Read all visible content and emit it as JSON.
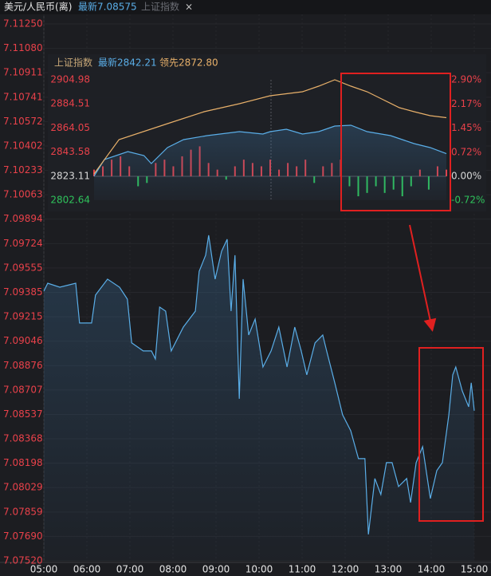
{
  "header": {
    "title": "美元/人民币(离)",
    "latest": "最新7.08575",
    "tab": "上证指数",
    "close": "×"
  },
  "chart_data": [
    {
      "type": "line",
      "color": "#5aaee8",
      "grid": true,
      "xlim": [
        5,
        15
      ],
      "xticks": [
        {
          "value": 5,
          "label": "05:00"
        },
        {
          "value": 6,
          "label": "06:00"
        },
        {
          "value": 7,
          "label": "07:00"
        },
        {
          "value": 8,
          "label": "08:00"
        },
        {
          "value": 9,
          "label": "09:00"
        },
        {
          "value": 10,
          "label": "10:00"
        },
        {
          "value": 11,
          "label": "11:00"
        },
        {
          "value": 12,
          "label": "12:00"
        },
        {
          "value": 13,
          "label": "13:00"
        },
        {
          "value": 14,
          "label": "14:00"
        },
        {
          "value": 15,
          "label": "15:00"
        }
      ],
      "ylim": [
        7.0752,
        7.1125
      ],
      "yticks": [
        {
          "value": 7.1125,
          "label": "7.11250"
        },
        {
          "value": 7.1108,
          "label": "7.11080"
        },
        7.10911,
        7.10741,
        7.10572,
        7.10402,
        7.10233,
        7.10063,
        7.09894,
        7.09724,
        7.09555,
        7.09385,
        7.09215,
        7.09046,
        7.08876,
        7.08707,
        7.08537,
        7.08368,
        7.08198,
        7.08029,
        7.07859,
        {
          "value": 7.0769,
          "label": "7.07690"
        },
        {
          "value": 7.0752,
          "label": "7.07520"
        }
      ],
      "x": [
        5.0,
        5.09,
        5.37,
        5.74,
        5.83,
        6.11,
        6.2,
        6.48,
        6.76,
        6.94,
        7.04,
        7.31,
        7.5,
        7.59,
        7.69,
        7.83,
        7.96,
        8.24,
        8.52,
        8.61,
        8.76,
        8.83,
        8.98,
        9.13,
        9.26,
        9.35,
        9.44,
        9.54,
        9.63,
        9.76,
        9.91,
        10.09,
        10.28,
        10.46,
        10.65,
        10.83,
        10.98,
        11.11,
        11.3,
        11.48,
        11.57,
        11.76,
        11.94,
        12.13,
        12.31,
        12.46,
        12.54,
        12.69,
        12.83,
        12.96,
        13.09,
        13.24,
        13.43,
        13.52,
        13.65,
        13.8,
        13.98,
        14.13,
        14.26,
        14.41,
        14.5,
        14.57,
        14.72,
        14.87,
        14.93,
        15.0
      ],
      "values": [
        7.09394,
        7.09449,
        7.09421,
        7.09449,
        7.09172,
        7.09172,
        7.09366,
        7.09477,
        7.09421,
        7.09338,
        7.09034,
        7.08978,
        7.08978,
        7.08923,
        7.09283,
        7.09255,
        7.08978,
        7.09144,
        7.09255,
        7.09532,
        7.09643,
        7.09782,
        7.09477,
        7.09671,
        7.09754,
        7.09255,
        7.09643,
        7.08646,
        7.09477,
        7.09089,
        7.092,
        7.08867,
        7.08978,
        7.09144,
        7.08867,
        7.09144,
        7.08978,
        7.08812,
        7.09034,
        7.09089,
        7.08978,
        7.08757,
        7.08535,
        7.08424,
        7.0823,
        7.0823,
        7.07704,
        7.08092,
        7.07981,
        7.08202,
        7.08202,
        7.08036,
        7.08092,
        7.07925,
        7.08202,
        7.08313,
        7.07953,
        7.08147,
        7.08202,
        7.08535,
        7.08812,
        7.08867,
        7.08701,
        7.0859,
        7.08757,
        7.08563
      ]
    },
    {
      "type": "line",
      "title": "上证指数",
      "xlim": [
        0,
        240
      ],
      "ylim": [
        2802.64,
        2904.98
      ],
      "yticks": [
        2904.98,
        2884.51,
        2864.05,
        2843.58,
        2823.11,
        2802.64
      ],
      "y2lim": [
        -0.72,
        2.9
      ],
      "y2ticks": [
        {
          "value": 2.9,
          "label": "2.90%"
        },
        {
          "value": 2.17,
          "label": "2.17%"
        },
        {
          "value": 1.45,
          "label": "1.45%"
        },
        {
          "value": 0.72,
          "label": "0.72%"
        },
        {
          "value": 0,
          "label": "0.00%"
        },
        {
          "value": -0.72,
          "label": "-0.72%"
        }
      ],
      "up_color": "#e8414a",
      "down_color": "#2fc25b",
      "flat_color": "#d8d8d8",
      "series": [
        {
          "name": "最新2842.21",
          "color": "#5aaee8",
          "x": [
            0,
            7,
            23,
            34,
            39,
            50,
            61,
            77,
            99,
            115,
            120,
            131,
            142,
            153,
            164,
            175,
            186,
            202,
            218,
            229,
            240
          ],
          "values": [
            2823.11,
            2837.2,
            2843.98,
            2840.6,
            2833.8,
            2847.37,
            2854.15,
            2857.54,
            2860.93,
            2858.9,
            2860.93,
            2862.96,
            2858.9,
            2860.93,
            2865.67,
            2866.35,
            2860.93,
            2857.54,
            2850.76,
            2847.37,
            2842.21
          ]
        },
        {
          "name": "领先2872.80",
          "color": "#e8b06a",
          "x": [
            0,
            17,
            50,
            75,
            99,
            120,
            142,
            153,
            164,
            175,
            186,
            197,
            208,
            218,
            229,
            240
          ],
          "values": [
            2825.0,
            2854.15,
            2867.7,
            2877.87,
            2884.65,
            2891.43,
            2894.81,
            2899.56,
            2904.98,
            2899.56,
            2894.81,
            2888.04,
            2881.26,
            2877.87,
            2874.48,
            2872.8
          ]
        }
      ],
      "bars": {
        "axis": "y2",
        "x": [
          0,
          6,
          12,
          18,
          24,
          30,
          36,
          42,
          48,
          54,
          60,
          66,
          72,
          78,
          84,
          90,
          96,
          102,
          108,
          114,
          120,
          126,
          132,
          138,
          144,
          150,
          156,
          162,
          168,
          174,
          180,
          186,
          192,
          198,
          204,
          210,
          216,
          222,
          228,
          234,
          240
        ],
        "values": [
          0.2,
          0.3,
          0.5,
          0.6,
          0.3,
          -0.3,
          -0.2,
          0.4,
          0.5,
          0.3,
          0.6,
          0.8,
          0.9,
          0.4,
          0.2,
          -0.1,
          0.3,
          0.5,
          0.4,
          0.3,
          0.5,
          0.2,
          0.4,
          0.3,
          0.5,
          -0.2,
          0.3,
          0.4,
          0.5,
          -0.3,
          -0.6,
          -0.5,
          -0.3,
          -0.5,
          -0.4,
          -0.6,
          -0.3,
          0.2,
          -0.4,
          0.3,
          0.2
        ]
      }
    }
  ]
}
